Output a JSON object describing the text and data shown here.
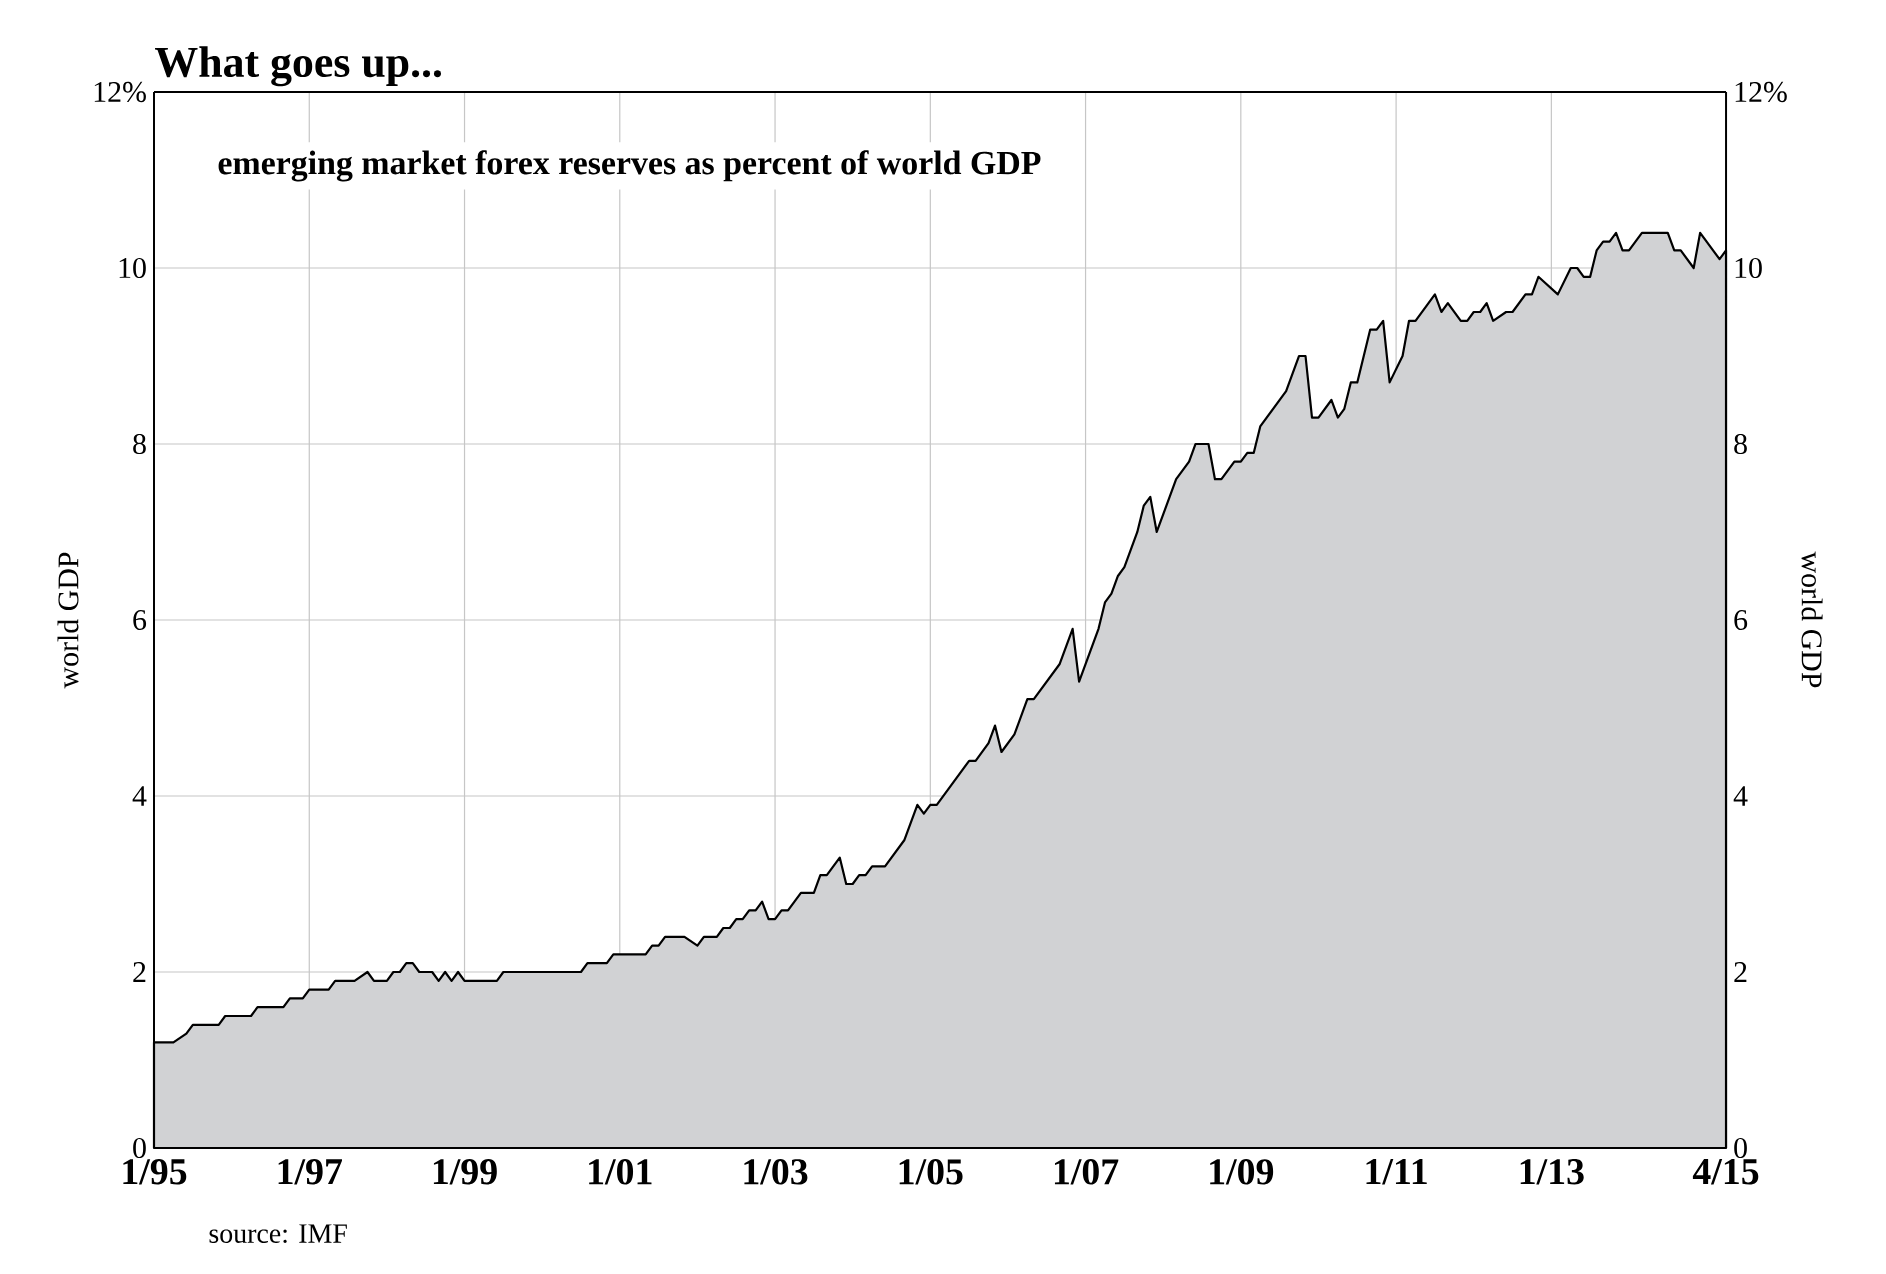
{
  "chart_data": {
    "type": "area",
    "title": "What goes up...",
    "subtitle": "emerging market forex reserves as percent of world GDP",
    "ylabel": "world GDP",
    "y2label": "world GDP",
    "annotations": [
      "source: IMF"
    ],
    "x": [
      "1995-01",
      "1995-04",
      "1995-06",
      "1995-07",
      "1995-11",
      "1995-12",
      "1996-04",
      "1996-05",
      "1996-09",
      "1996-10",
      "1996-12",
      "1997-01",
      "1997-04",
      "1997-05",
      "1997-08",
      "1997-10",
      "1997-11",
      "1998-01",
      "1998-02",
      "1998-03",
      "1998-04",
      "1998-05",
      "1998-06",
      "1998-08",
      "1998-09",
      "1998-10",
      "1998-11",
      "1998-12",
      "1999-01",
      "1999-06",
      "1999-07",
      "2000-07",
      "2000-08",
      "2000-11",
      "2000-12",
      "2001-05",
      "2001-06",
      "2001-07",
      "2001-08",
      "2001-11",
      "2002-01",
      "2002-02",
      "2002-04",
      "2002-05",
      "2002-06",
      "2002-07",
      "2002-08",
      "2002-09",
      "2002-10",
      "2002-11",
      "2002-12",
      "2003-01",
      "2003-02",
      "2003-03",
      "2003-05",
      "2003-07",
      "2003-08",
      "2003-09",
      "2003-11",
      "2003-12",
      "2004-01",
      "2004-02",
      "2004-03",
      "2004-04",
      "2004-06",
      "2004-09",
      "2004-11",
      "2004-12",
      "2005-01",
      "2005-02",
      "2005-07",
      "2005-08",
      "2005-10",
      "2005-11",
      "2005-12",
      "2006-02",
      "2006-04",
      "2006-05",
      "2006-09",
      "2006-11",
      "2006-12",
      "2007-03",
      "2007-04",
      "2007-05",
      "2007-06",
      "2007-07",
      "2007-09",
      "2007-10",
      "2007-11",
      "2007-12",
      "2008-03",
      "2008-05",
      "2008-06",
      "2008-08",
      "2008-09",
      "2008-10",
      "2008-12",
      "2009-01",
      "2009-02",
      "2009-03",
      "2009-04",
      "2009-08",
      "2009-10",
      "2009-11",
      "2009-12",
      "2010-01",
      "2010-03",
      "2010-04",
      "2010-05",
      "2010-06",
      "2010-07",
      "2010-09",
      "2010-10",
      "2010-11",
      "2010-12",
      "2011-02",
      "2011-03",
      "2011-04",
      "2011-07",
      "2011-08",
      "2011-09",
      "2011-11",
      "2011-12",
      "2012-01",
      "2012-02",
      "2012-03",
      "2012-04",
      "2012-06",
      "2012-07",
      "2012-09",
      "2012-10",
      "2012-11",
      "2013-02",
      "2013-04",
      "2013-05",
      "2013-06",
      "2013-07",
      "2013-08",
      "2013-09",
      "2013-10",
      "2013-11",
      "2013-12",
      "2014-01",
      "2014-03",
      "2014-07",
      "2014-08",
      "2014-09",
      "2014-11",
      "2014-12",
      "2015-01",
      "2015-03",
      "2015-04"
    ],
    "series": [
      {
        "color": "#d1d2d4",
        "values": [
          1.2,
          1.2,
          1.3,
          1.4,
          1.4,
          1.5,
          1.5,
          1.6,
          1.6,
          1.7,
          1.7,
          1.8,
          1.8,
          1.9,
          1.9,
          2.0,
          1.9,
          1.9,
          2.0,
          2.0,
          2.1,
          2.1,
          2.0,
          2.0,
          1.9,
          2.0,
          1.9,
          2.0,
          1.9,
          1.9,
          2.0,
          2.0,
          2.1,
          2.1,
          2.2,
          2.2,
          2.3,
          2.3,
          2.4,
          2.4,
          2.3,
          2.4,
          2.4,
          2.5,
          2.5,
          2.6,
          2.6,
          2.7,
          2.7,
          2.8,
          2.6,
          2.6,
          2.7,
          2.7,
          2.9,
          2.9,
          3.1,
          3.1,
          3.3,
          3.0,
          3.0,
          3.1,
          3.1,
          3.2,
          3.2,
          3.5,
          3.9,
          3.8,
          3.9,
          3.9,
          4.4,
          4.4,
          4.6,
          4.8,
          4.5,
          4.7,
          5.1,
          5.1,
          5.5,
          5.9,
          5.3,
          5.9,
          6.2,
          6.3,
          6.5,
          6.6,
          7.0,
          7.3,
          7.4,
          7.0,
          7.6,
          7.8,
          8.0,
          8.0,
          7.6,
          7.6,
          7.8,
          7.8,
          7.9,
          7.9,
          8.2,
          8.6,
          9.0,
          9.0,
          8.3,
          8.3,
          8.5,
          8.3,
          8.4,
          8.7,
          8.7,
          9.3,
          9.3,
          9.4,
          8.7,
          9.0,
          9.4,
          9.4,
          9.7,
          9.5,
          9.6,
          9.4,
          9.4,
          9.5,
          9.5,
          9.6,
          9.4,
          9.5,
          9.5,
          9.7,
          9.7,
          9.9,
          9.7,
          10.0,
          10.0,
          9.9,
          9.9,
          10.2,
          10.3,
          10.3,
          10.4,
          10.2,
          10.2,
          10.4,
          10.4,
          10.2,
          10.2,
          10.0,
          10.4,
          10.3,
          10.1,
          10.2
        ]
      }
    ],
    "xlim": [
      "1995-01",
      "2015-04"
    ],
    "xticks": [
      {
        "value": "1995-01",
        "label": "1/95"
      },
      {
        "value": "1997-01",
        "label": "1/97"
      },
      {
        "value": "1999-01",
        "label": "1/99"
      },
      {
        "value": "2001-01",
        "label": "1/01"
      },
      {
        "value": "2003-01",
        "label": "1/03"
      },
      {
        "value": "2005-01",
        "label": "1/05"
      },
      {
        "value": "2007-01",
        "label": "1/07"
      },
      {
        "value": "2009-01",
        "label": "1/09"
      },
      {
        "value": "2011-01",
        "label": "1/11"
      },
      {
        "value": "2013-01",
        "label": "1/13"
      },
      {
        "value": "2015-04",
        "label": "4/15"
      }
    ],
    "ylim": [
      0,
      12
    ],
    "yticks": [
      0,
      2,
      4,
      6,
      8,
      10,
      {
        "value": 12,
        "label": "12%"
      }
    ],
    "y2lim": [
      0,
      12
    ],
    "y2ticks": [
      0,
      2,
      4,
      6,
      8,
      10,
      {
        "value": 12,
        "label": "12%"
      }
    ],
    "grid": true
  }
}
